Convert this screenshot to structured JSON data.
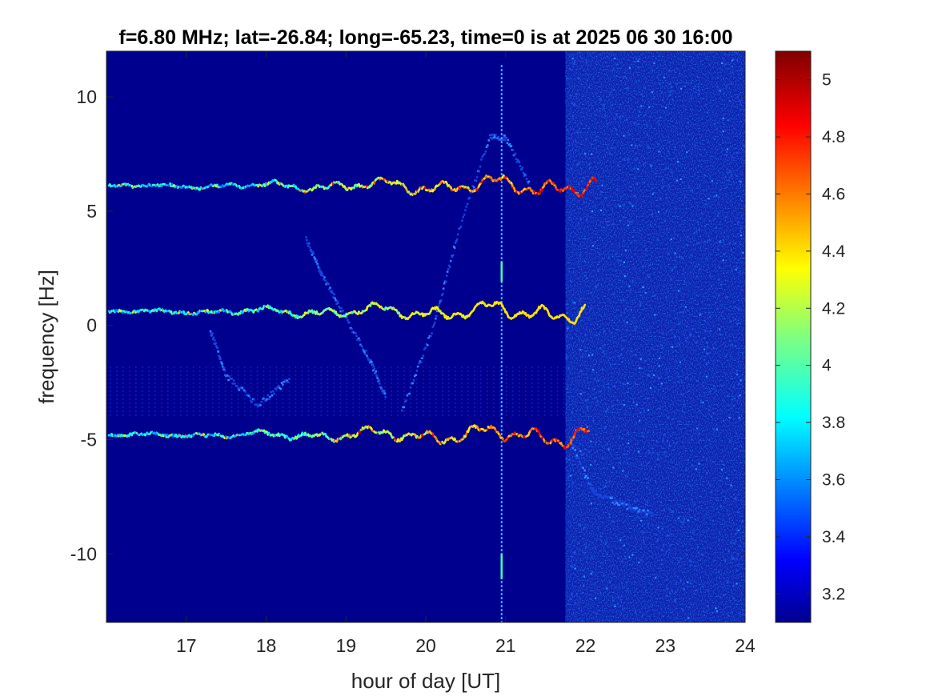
{
  "chart_data": {
    "type": "heatmap",
    "title": "f=6.80 MHz;  lat=-26.84; long=-65.23, time=0 is at 2025 06 30 16:00",
    "xlabel": "hour of day [UT]",
    "ylabel": "frequency [Hz]",
    "xlim": [
      16,
      24
    ],
    "ylim": [
      -13,
      12
    ],
    "xticks": [
      17,
      18,
      19,
      20,
      21,
      22,
      23,
      24
    ],
    "yticks": [
      -10,
      -5,
      0,
      5,
      10
    ],
    "xtick_labels": [
      "17",
      "18",
      "19",
      "20",
      "21",
      "22",
      "23",
      "24"
    ],
    "ytick_labels": [
      "-10",
      "-5",
      "0",
      "5",
      "10"
    ],
    "colormap": "jet",
    "background_color": "#00008f",
    "colorbar": {
      "range": [
        3.1,
        5.1
      ],
      "ticks": [
        3.2,
        3.4,
        3.6,
        3.8,
        4,
        4.2,
        4.4,
        4.6,
        4.8,
        5
      ],
      "tick_labels": [
        "3.2",
        "3.4",
        "3.6",
        "3.8",
        "4",
        "4.2",
        "4.4",
        "4.6",
        "4.8",
        "5"
      ]
    },
    "noise_onset_hour": 21.75,
    "traces": [
      {
        "name_ref": "upper-trace",
        "center": 6.1,
        "x_range": [
          16.03,
          22.15
        ],
        "peak_value": 4.9
      },
      {
        "name_ref": "middle-trace",
        "center": 0.6,
        "x_range": [
          16.03,
          22.0
        ],
        "peak_value": 4.4
      },
      {
        "name_ref": "lower-trace",
        "center": -4.8,
        "x_range": [
          16.03,
          22.05
        ],
        "peak_value": 4.9
      }
    ],
    "arcs": [
      {
        "name_ref": "arc-rising",
        "points": [
          [
            19.7,
            -3.8
          ],
          [
            20.1,
            0
          ],
          [
            20.4,
            4
          ],
          [
            20.8,
            8.3
          ],
          [
            21.0,
            8.2
          ],
          [
            21.3,
            6.2
          ]
        ]
      },
      {
        "name_ref": "arc-descending",
        "points": [
          [
            18.5,
            3.8
          ],
          [
            18.7,
            2.2
          ],
          [
            19.0,
            0.3
          ],
          [
            19.3,
            -1.5
          ],
          [
            19.5,
            -3.2
          ]
        ]
      },
      {
        "name_ref": "arc-left-mid",
        "points": [
          [
            17.3,
            -0.2
          ],
          [
            17.5,
            -2.2
          ],
          [
            17.9,
            -3.5
          ],
          [
            18.3,
            -2.3
          ]
        ]
      },
      {
        "name_ref": "arc-right-tail",
        "points": [
          [
            21.8,
            -5.0
          ],
          [
            22.1,
            -7.3
          ],
          [
            22.5,
            -7.9
          ],
          [
            22.85,
            -8.3
          ]
        ]
      }
    ],
    "vertical_line_hour": 20.95
  }
}
